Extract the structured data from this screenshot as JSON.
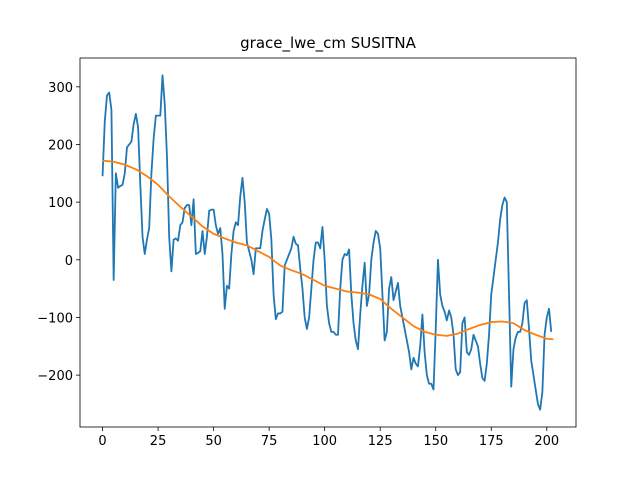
{
  "chart_data": {
    "type": "line",
    "title": "grace_lwe_cm SUSITNA",
    "xlim": [
      -10.15,
      213.15
    ],
    "xticks": [
      0,
      25,
      50,
      75,
      100,
      125,
      150,
      175,
      200
    ],
    "ylim": [
      -290,
      350
    ],
    "yticks": [
      {
        "value": -200,
        "label": "−200"
      },
      {
        "value": -100,
        "label": "−100"
      },
      0,
      100,
      200,
      300
    ],
    "series": [
      {
        "color": "#1f77b4",
        "x": [
          0,
          1,
          2,
          3,
          4,
          5,
          6,
          7,
          8,
          9,
          10,
          11,
          12,
          13,
          14,
          15,
          16,
          17,
          18,
          19,
          20,
          21,
          22,
          23,
          24,
          25,
          26,
          27,
          28,
          29,
          30,
          31,
          32,
          33,
          34,
          35,
          36,
          37,
          38,
          39,
          40,
          41,
          42,
          43,
          44,
          45,
          46,
          47,
          48,
          49,
          50,
          51,
          52,
          53,
          54,
          55,
          56,
          57,
          58,
          59,
          60,
          61,
          62,
          63,
          64,
          65,
          66,
          67,
          68,
          69,
          70,
          71,
          72,
          73,
          74,
          75,
          76,
          77,
          78,
          79,
          80,
          81,
          82,
          83,
          84,
          85,
          86,
          87,
          88,
          89,
          90,
          91,
          92,
          93,
          94,
          95,
          96,
          97,
          98,
          99,
          100,
          101,
          102,
          103,
          104,
          105,
          106,
          107,
          108,
          109,
          110,
          111,
          112,
          113,
          114,
          115,
          116,
          117,
          118,
          119,
          120,
          121,
          122,
          123,
          124,
          125,
          126,
          127,
          128,
          129,
          130,
          131,
          132,
          133,
          134,
          135,
          136,
          137,
          138,
          139,
          140,
          141,
          142,
          143,
          144,
          145,
          146,
          147,
          148,
          149,
          150,
          151,
          152,
          153,
          154,
          155,
          156,
          157,
          158,
          159,
          160,
          161,
          162,
          163,
          164,
          165,
          166,
          167,
          168,
          169,
          170,
          171,
          172,
          173,
          174,
          175,
          176,
          177,
          178,
          179,
          180,
          181,
          182,
          183,
          184,
          185,
          186,
          187,
          188,
          189,
          190,
          191,
          192,
          193,
          194,
          195,
          196,
          197,
          198,
          199,
          200,
          201,
          202
        ],
        "values": [
          145,
          240,
          285,
          290,
          260,
          -35,
          150,
          125,
          128,
          130,
          150,
          195,
          200,
          205,
          235,
          253,
          230,
          130,
          40,
          10,
          35,
          55,
          150,
          210,
          250,
          250,
          250,
          320,
          270,
          180,
          40,
          -20,
          35,
          37,
          33,
          60,
          65,
          90,
          95,
          95,
          60,
          105,
          10,
          12,
          15,
          50,
          10,
          40,
          85,
          87,
          87,
          60,
          45,
          55,
          10,
          -85,
          -45,
          -50,
          10,
          50,
          65,
          60,
          110,
          142,
          100,
          30,
          15,
          0,
          -25,
          20,
          20,
          20,
          50,
          70,
          88,
          80,
          35,
          -60,
          -103,
          -93,
          -93,
          -90,
          -10,
          0,
          10,
          20,
          40,
          28,
          25,
          -15,
          -50,
          -100,
          -120,
          -100,
          -50,
          0,
          30,
          30,
          20,
          57,
          0,
          -80,
          -110,
          -125,
          -125,
          -130,
          -130,
          -50,
          0,
          10,
          8,
          18,
          -60,
          -110,
          -140,
          -155,
          -95,
          -45,
          -5,
          -80,
          -60,
          0,
          30,
          50,
          45,
          20,
          -60,
          -140,
          -125,
          -50,
          -30,
          -70,
          -55,
          -40,
          -80,
          -100,
          -120,
          -140,
          -160,
          -190,
          -170,
          -180,
          -185,
          -150,
          -95,
          -160,
          -200,
          -215,
          -215,
          -225,
          -120,
          0,
          -60,
          -80,
          -90,
          -105,
          -88,
          -100,
          -130,
          -190,
          -200,
          -195,
          -110,
          -100,
          -160,
          -165,
          -155,
          -130,
          -140,
          -150,
          -180,
          -205,
          -210,
          -180,
          -130,
          -60,
          -30,
          0,
          30,
          70,
          95,
          108,
          100,
          -60,
          -220,
          -155,
          -135,
          -125,
          -125,
          -110,
          -75,
          -70,
          -120,
          -175,
          -200,
          -225,
          -250,
          -260,
          -230,
          -130,
          -100,
          -85,
          -125
        ]
      },
      {
        "color": "#ff7f0e",
        "x": [
          0,
          5,
          10,
          15,
          20,
          25,
          30,
          35,
          40,
          45,
          50,
          55,
          60,
          65,
          70,
          75,
          80,
          85,
          90,
          95,
          100,
          105,
          110,
          115,
          120,
          125,
          130,
          135,
          140,
          145,
          150,
          155,
          160,
          165,
          170,
          175,
          180,
          185,
          190,
          195,
          200,
          203
        ],
        "values": [
          172,
          170,
          165,
          157,
          145,
          130,
          110,
          92,
          75,
          58,
          45,
          37,
          30,
          25,
          15,
          5,
          -10,
          -18,
          -25,
          -35,
          -45,
          -50,
          -55,
          -57,
          -60,
          -68,
          -85,
          -100,
          -115,
          -125,
          -130,
          -132,
          -128,
          -120,
          -113,
          -108,
          -107,
          -110,
          -122,
          -130,
          -137,
          -138
        ]
      }
    ]
  }
}
